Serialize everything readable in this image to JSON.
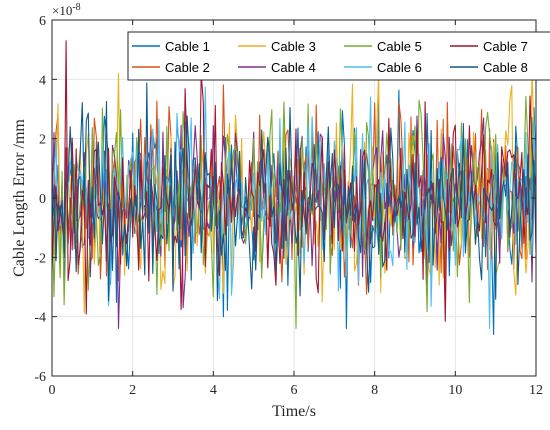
{
  "chart_data": {
    "type": "line",
    "xlabel": "Time/s",
    "ylabel": "Cable Length Error /mm",
    "y_exponent_label": "×10",
    "y_exponent_power": "-8",
    "xlim": [
      0,
      12
    ],
    "ylim": [
      -6,
      4.0
    ],
    "ylim_display": [
      -6,
      6
    ],
    "xticks": [
      "0",
      "2",
      "4",
      "6",
      "8",
      "10",
      "12"
    ],
    "yticks": [
      "-6",
      "-4",
      "-2",
      "0",
      "2",
      "4",
      "6"
    ],
    "grid": true,
    "legend_placement": "top-center",
    "legend_columns": 4,
    "samples_per_series": 241,
    "series": [
      {
        "name": "Cable 1",
        "color": "#0072BD",
        "amplitude": 1.4
      },
      {
        "name": "Cable 2",
        "color": "#D95319",
        "amplitude": 1.5
      },
      {
        "name": "Cable 3",
        "color": "#EDB120",
        "amplitude": 1.5
      },
      {
        "name": "Cable 4",
        "color": "#7E2F8E",
        "amplitude": 1.3
      },
      {
        "name": "Cable 5",
        "color": "#77AC30",
        "amplitude": 1.5
      },
      {
        "name": "Cable 6",
        "color": "#4DBEEE",
        "amplitude": 1.3
      },
      {
        "name": "Cable 7",
        "color": "#A2142F",
        "amplitude": 1.5
      },
      {
        "name": "Cable 8",
        "color": "#0E5A8A",
        "amplitude": 1.4
      }
    ],
    "y_extremes_observed": {
      "max": 5.3,
      "min": -4.6
    }
  }
}
